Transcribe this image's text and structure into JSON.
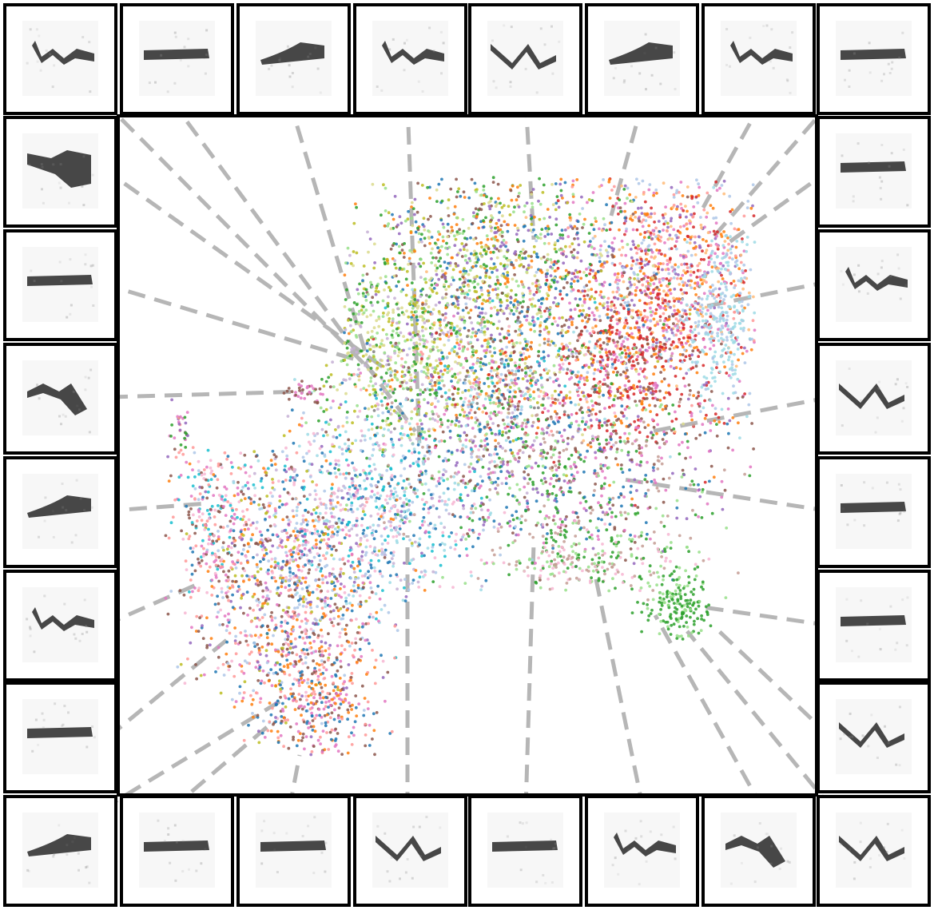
{
  "figure": {
    "kind": "umap-projection-with-spectrogram-gallery",
    "background": "#ffffff",
    "border_color": "#000000",
    "connector_color": "#b3b3b3",
    "tile_background": "#f7f7f7",
    "spectrogram_ink": "#1a1a1a"
  },
  "palette": [
    "#1f77b4",
    "#ff7f0e",
    "#2ca02c",
    "#d62728",
    "#9467bd",
    "#8c564b",
    "#e377c2",
    "#7f7f7f",
    "#bcbd22",
    "#17becf",
    "#aec7e8",
    "#ffbb78",
    "#98df8a",
    "#ff9896",
    "#c5b0d5",
    "#c49c94",
    "#f7b6d2",
    "#dbdb8d",
    "#9edae5"
  ],
  "scatter": {
    "description_units": "embedding",
    "point_count": 9000,
    "clusters": [
      {
        "name": "upper-right-orange-red",
        "colors": [
          "#ff7f0e",
          "#d62728",
          "#ffbb78",
          "#ff9896",
          "#e377c2"
        ]
      },
      {
        "name": "upper-left-green-purple",
        "colors": [
          "#2ca02c",
          "#98df8a",
          "#9467bd",
          "#bcbd22",
          "#dbdb8d",
          "#8c564b"
        ]
      },
      {
        "name": "light-blue-edge",
        "colors": [
          "#9edae5",
          "#aec7e8"
        ]
      },
      {
        "name": "center-teal",
        "colors": [
          "#17becf",
          "#9edae5",
          "#c5b0d5"
        ]
      },
      {
        "name": "lower-left-mixed",
        "colors": [
          "#1f77b4",
          "#ff9896",
          "#8c564b",
          "#e377c2",
          "#f7b6d2",
          "#bcbd22"
        ]
      },
      {
        "name": "lower-right-green",
        "colors": [
          "#2ca02c",
          "#98df8a",
          "#8c564b",
          "#9467bd"
        ]
      }
    ]
  },
  "tiles": {
    "count": 28,
    "shapes": [
      "chirp",
      "bar",
      "rise",
      "chirp",
      "v",
      "rise",
      "chirp",
      "bar",
      "blob",
      "bar",
      "hump",
      "rise",
      "chirp",
      "bar",
      "bar",
      "chirp",
      "v",
      "bar",
      "bar",
      "v",
      "rise",
      "bar",
      "bar",
      "v",
      "bar",
      "chirp",
      "hump",
      "v"
    ]
  }
}
